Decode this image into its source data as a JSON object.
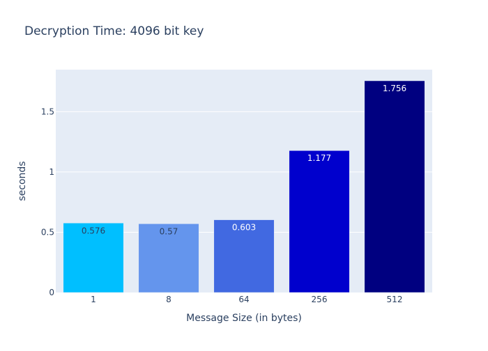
{
  "chart_data": {
    "type": "bar",
    "title": "Decryption Time: 4096 bit key",
    "xlabel": "Message Size (in bytes)",
    "ylabel": "seconds",
    "categories": [
      "1",
      "8",
      "64",
      "256",
      "512"
    ],
    "values": [
      0.576,
      0.57,
      0.603,
      1.177,
      1.756
    ],
    "value_labels": [
      "0.576",
      "0.57",
      "0.603",
      "1.177",
      "1.756"
    ],
    "bar_colors": [
      "#00bfff",
      "#6495ed",
      "#4169e1",
      "#0000cd",
      "#000080"
    ],
    "label_colors": [
      "#2a3f5f",
      "#2a3f5f",
      "#ffffff",
      "#ffffff",
      "#ffffff"
    ],
    "yticks": [
      0,
      0.5,
      1,
      1.5
    ],
    "ytick_labels": [
      "0",
      "0.5",
      "1",
      "1.5"
    ],
    "ylim": [
      0,
      1.8484
    ],
    "grid": true,
    "plot_bgcolor": "#e5ecf6",
    "text_color": "#2a3f5f"
  }
}
